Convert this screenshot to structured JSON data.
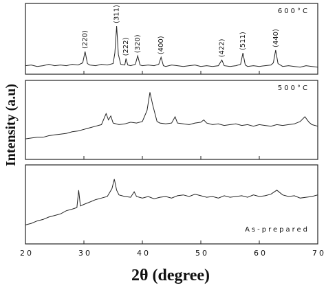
{
  "axis_labels": {
    "x": "2θ (degree)",
    "y": "Intensity (a.u)"
  },
  "chart_data": [
    {
      "type": "line",
      "annotation": "600°C",
      "color": "#222222",
      "xlim": [
        20,
        70
      ],
      "ylim": [
        0,
        100
      ],
      "peak_labels": [
        {
          "x": 30.2,
          "label": "(220)"
        },
        {
          "x": 35.6,
          "label": "(311)"
        },
        {
          "x": 37.2,
          "label": "(222)"
        },
        {
          "x": 39.2,
          "label": "(320)"
        },
        {
          "x": 43.2,
          "label": "(400)"
        },
        {
          "x": 53.6,
          "label": "(422)"
        },
        {
          "x": 57.2,
          "label": "(511)"
        },
        {
          "x": 62.8,
          "label": "(440)"
        }
      ],
      "x": [
        20,
        21,
        22,
        23,
        24,
        25,
        26,
        27,
        28,
        29,
        29.8,
        30.2,
        30.6,
        31,
        32,
        33,
        34,
        35,
        35.3,
        35.6,
        35.9,
        36.3,
        37,
        37.2,
        37.5,
        38,
        38.8,
        39.2,
        39.6,
        40,
        41,
        42,
        42.8,
        43.2,
        43.6,
        44,
        45,
        46,
        47,
        48,
        49,
        50,
        51,
        52,
        53,
        53.6,
        54,
        55,
        56,
        56.8,
        57.2,
        57.6,
        58,
        59,
        60,
        61,
        62,
        62.4,
        62.8,
        63.2,
        64,
        65,
        66,
        67,
        68,
        69,
        70
      ],
      "values": [
        12,
        13,
        11,
        12,
        14,
        12,
        13,
        12,
        14,
        13,
        16,
        32,
        15,
        13,
        12,
        14,
        13,
        15,
        30,
        68,
        28,
        14,
        13,
        22,
        13,
        12,
        14,
        26,
        13,
        12,
        13,
        12,
        14,
        24,
        12,
        11,
        13,
        12,
        11,
        12,
        13,
        11,
        12,
        11,
        12,
        20,
        12,
        11,
        12,
        14,
        30,
        13,
        11,
        12,
        11,
        12,
        13,
        16,
        34,
        15,
        11,
        12,
        11,
        10,
        12,
        11,
        10
      ]
    },
    {
      "type": "line",
      "annotation": "500°C",
      "color": "#222222",
      "xlim": [
        20,
        70
      ],
      "ylim": [
        0,
        100
      ],
      "x": [
        20,
        21,
        22,
        23,
        24,
        25,
        26,
        27,
        28,
        29,
        30,
        31,
        32,
        33,
        33.8,
        34.2,
        34.6,
        35,
        36,
        37,
        38,
        39,
        40,
        40.8,
        41.3,
        41.8,
        42.5,
        43,
        44,
        45,
        45.6,
        46,
        47,
        48,
        49,
        50,
        50.5,
        51,
        52,
        53,
        54,
        55,
        56,
        57,
        58,
        59,
        60,
        61,
        62,
        63,
        64,
        65,
        66,
        67,
        67.8,
        68.5,
        69,
        70
      ],
      "values": [
        26,
        27,
        28,
        28,
        30,
        31,
        32,
        33,
        35,
        36,
        38,
        40,
        42,
        44,
        58,
        50,
        55,
        46,
        44,
        45,
        47,
        46,
        48,
        62,
        85,
        68,
        48,
        46,
        45,
        46,
        54,
        46,
        45,
        44,
        46,
        47,
        50,
        46,
        44,
        45,
        43,
        44,
        45,
        43,
        44,
        42,
        44,
        43,
        42,
        44,
        43,
        44,
        45,
        48,
        54,
        47,
        44,
        42
      ]
    },
    {
      "type": "line",
      "annotation": "As-prepared",
      "color": "#222222",
      "xlim": [
        20,
        70
      ],
      "ylim": [
        0,
        100
      ],
      "xticks": [
        20,
        30,
        40,
        50,
        60,
        70
      ],
      "x": [
        20,
        21,
        22,
        23,
        24,
        25,
        26,
        27,
        28,
        28.8,
        29.1,
        29.4,
        30,
        31,
        32,
        33,
        34,
        34.8,
        35.2,
        35.6,
        36,
        37,
        38,
        38.6,
        39,
        40,
        41,
        42,
        43,
        44,
        45,
        46,
        47,
        48,
        49,
        50,
        51,
        52,
        53,
        54,
        55,
        56,
        57,
        58,
        59,
        60,
        61,
        62,
        63,
        64,
        65,
        66,
        67,
        68,
        69,
        70
      ],
      "values": [
        24,
        26,
        29,
        31,
        34,
        36,
        38,
        42,
        44,
        46,
        68,
        48,
        50,
        53,
        56,
        58,
        60,
        70,
        82,
        68,
        62,
        60,
        59,
        66,
        60,
        58,
        60,
        57,
        59,
        60,
        58,
        61,
        62,
        60,
        63,
        61,
        59,
        60,
        58,
        61,
        59,
        60,
        61,
        59,
        62,
        60,
        61,
        63,
        68,
        62,
        60,
        61,
        58,
        59,
        60,
        62
      ]
    }
  ]
}
